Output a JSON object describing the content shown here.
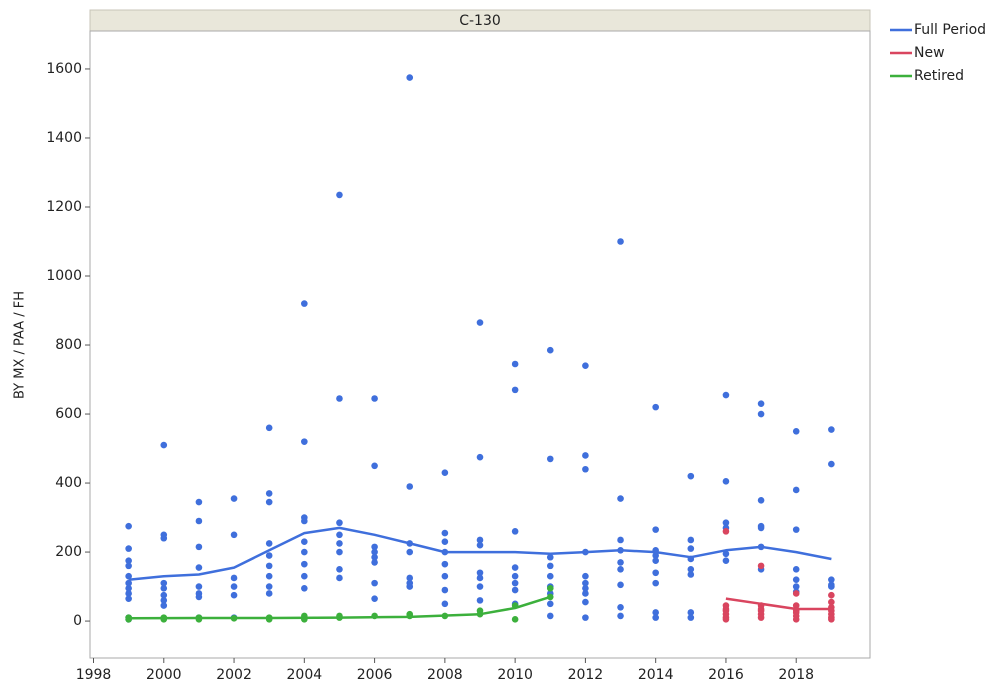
{
  "chart_data": {
    "type": "scatter",
    "title": "C-130",
    "ylabel": "BY MX / PAA / FH",
    "xlim": [
      1997.9,
      2020.1
    ],
    "ylim": [
      -107,
      1710
    ],
    "xticks": [
      1998,
      2000,
      2002,
      2004,
      2006,
      2008,
      2010,
      2012,
      2014,
      2016,
      2018
    ],
    "yticks": [
      0,
      200,
      400,
      600,
      800,
      1000,
      1200,
      1400,
      1600
    ],
    "series": [
      {
        "name": "Full Period",
        "color": "#3f6fdc",
        "x": [
          1999,
          1999,
          1999,
          1999,
          1999,
          1999,
          1999,
          1999,
          1999,
          1999,
          1999,
          2000,
          2000,
          2000,
          2000,
          2000,
          2000,
          2000,
          2000,
          2001,
          2001,
          2001,
          2001,
          2001,
          2001,
          2001,
          2001,
          2002,
          2002,
          2002,
          2002,
          2002,
          2002,
          2003,
          2003,
          2003,
          2003,
          2003,
          2003,
          2003,
          2003,
          2003,
          2004,
          2004,
          2004,
          2004,
          2004,
          2004,
          2004,
          2004,
          2004,
          2005,
          2005,
          2005,
          2005,
          2005,
          2005,
          2005,
          2005,
          2006,
          2006,
          2006,
          2006,
          2006,
          2006,
          2006,
          2006,
          2007,
          2007,
          2007,
          2007,
          2007,
          2007,
          2007,
          2008,
          2008,
          2008,
          2008,
          2008,
          2008,
          2008,
          2008,
          2009,
          2009,
          2009,
          2009,
          2009,
          2009,
          2009,
          2009,
          2010,
          2010,
          2010,
          2010,
          2010,
          2010,
          2010,
          2010,
          2011,
          2011,
          2011,
          2011,
          2011,
          2011,
          2011,
          2011,
          2011,
          2012,
          2012,
          2012,
          2012,
          2012,
          2012,
          2012,
          2012,
          2012,
          2012,
          2013,
          2013,
          2013,
          2013,
          2013,
          2013,
          2013,
          2013,
          2013,
          2014,
          2014,
          2014,
          2014,
          2014,
          2014,
          2014,
          2014,
          2014,
          2015,
          2015,
          2015,
          2015,
          2015,
          2015,
          2015,
          2015,
          2016,
          2016,
          2016,
          2016,
          2016,
          2016,
          2017,
          2017,
          2017,
          2017,
          2017,
          2017,
          2017,
          2018,
          2018,
          2018,
          2018,
          2018,
          2018,
          2018,
          2019,
          2019,
          2019,
          2019,
          2019
        ],
        "values": [
          275,
          210,
          175,
          160,
          130,
          110,
          95,
          80,
          65,
          10,
          5,
          510,
          250,
          240,
          110,
          95,
          75,
          60,
          45,
          345,
          290,
          215,
          155,
          100,
          80,
          70,
          10,
          355,
          250,
          125,
          100,
          75,
          10,
          560,
          370,
          345,
          225,
          190,
          160,
          130,
          100,
          80,
          920,
          520,
          300,
          290,
          230,
          200,
          165,
          130,
          95,
          1235,
          645,
          285,
          250,
          225,
          200,
          150,
          125,
          645,
          450,
          215,
          200,
          185,
          170,
          110,
          65,
          1575,
          390,
          225,
          200,
          125,
          110,
          100,
          430,
          255,
          230,
          200,
          165,
          130,
          90,
          50,
          865,
          475,
          235,
          220,
          140,
          125,
          100,
          60,
          745,
          670,
          260,
          155,
          130,
          110,
          90,
          50,
          785,
          470,
          185,
          160,
          130,
          100,
          80,
          50,
          15,
          740,
          480,
          440,
          200,
          130,
          110,
          95,
          80,
          55,
          10,
          1100,
          355,
          235,
          205,
          170,
          150,
          105,
          40,
          15,
          620,
          265,
          205,
          190,
          175,
          140,
          110,
          25,
          10,
          420,
          235,
          210,
          180,
          150,
          135,
          25,
          10,
          655,
          405,
          285,
          270,
          195,
          175,
          630,
          600,
          350,
          275,
          270,
          215,
          150,
          550,
          380,
          265,
          150,
          120,
          100,
          85,
          555,
          455,
          120,
          105,
          100
        ],
        "fit_x": [
          1999,
          2000,
          2001,
          2002,
          2003,
          2004,
          2005,
          2006,
          2007,
          2008,
          2009,
          2010,
          2011,
          2012,
          2013,
          2014,
          2015,
          2016,
          2017,
          2018,
          2019
        ],
        "fit_values": [
          120,
          130,
          135,
          155,
          205,
          255,
          270,
          250,
          225,
          200,
          200,
          200,
          195,
          200,
          205,
          200,
          185,
          205,
          215,
          200,
          180
        ]
      },
      {
        "name": "New",
        "color": "#d9455f",
        "x": [
          2016,
          2016,
          2016,
          2016,
          2016,
          2016,
          2016,
          2017,
          2017,
          2017,
          2017,
          2017,
          2017,
          2018,
          2018,
          2018,
          2018,
          2018,
          2018,
          2019,
          2019,
          2019,
          2019,
          2019,
          2019,
          2019
        ],
        "values": [
          260,
          45,
          35,
          30,
          20,
          10,
          5,
          160,
          45,
          35,
          30,
          20,
          10,
          80,
          45,
          30,
          25,
          15,
          5,
          75,
          55,
          40,
          30,
          20,
          10,
          5
        ],
        "fit_x": [
          2016,
          2017,
          2018,
          2019
        ],
        "fit_values": [
          65,
          50,
          35,
          35
        ]
      },
      {
        "name": "Retired",
        "color": "#3cb03c",
        "x": [
          1999,
          1999,
          2000,
          2000,
          2001,
          2001,
          2002,
          2003,
          2003,
          2004,
          2004,
          2005,
          2005,
          2006,
          2007,
          2007,
          2008,
          2009,
          2009,
          2010,
          2010,
          2011,
          2011
        ],
        "values": [
          10,
          5,
          10,
          5,
          10,
          5,
          8,
          10,
          5,
          15,
          5,
          15,
          10,
          15,
          20,
          15,
          15,
          30,
          20,
          45,
          5,
          95,
          70
        ],
        "fit_x": [
          1999,
          2001,
          2003,
          2005,
          2007,
          2009,
          2010,
          2011
        ],
        "fit_values": [
          8,
          9,
          9,
          10,
          12,
          20,
          38,
          70
        ]
      }
    ]
  }
}
